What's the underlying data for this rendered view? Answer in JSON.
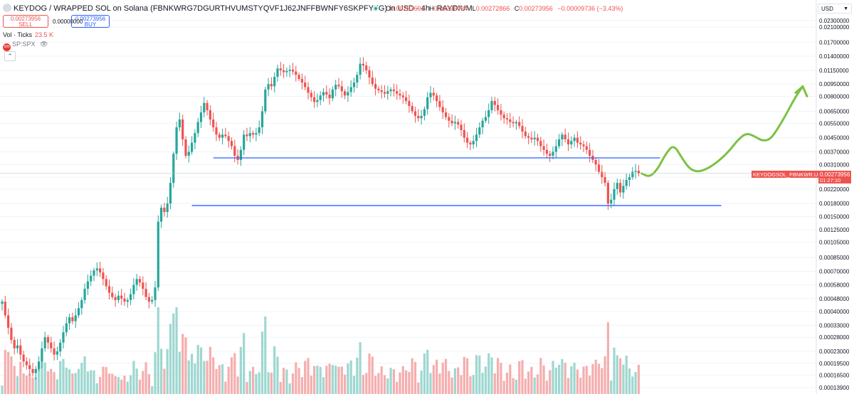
{
  "header": {
    "title": "KEYDOG / WRAPPED SOL on Solana (FBNKWRG7DGURTHVUMSTYQVF1J62JNFFBWNFY6SKPFYFG) in USD · 4h · RAYDIUM",
    "ohlc": {
      "o_label": "O",
      "o": "0.00283691",
      "h_label": "H",
      "h": "0.00296734",
      "l_label": "L",
      "l": "0.00272866",
      "c_label": "C",
      "c": "0.00273956",
      "change": "−0.00009736 (−3.43%)"
    }
  },
  "trade": {
    "sell_price": "0.00273956",
    "sell_label": "SELL",
    "spread": "0.00000000",
    "buy_price": "0.00273956",
    "buy_label": "BUY"
  },
  "volume_legend": {
    "label": "Vol · Ticks",
    "value": "23.5 K"
  },
  "overlay": {
    "symbol": "SP:SPX",
    "badge": "500"
  },
  "currency_selector": {
    "value": "USD"
  },
  "price_tag": {
    "symbol": "KEYDOGSOL_FBNKWR.USD",
    "price": "0.00273956",
    "countdown": "01:27:10"
  },
  "colors": {
    "up": "#26a69a",
    "down": "#ef5350",
    "vol_up": "#9ed7d0",
    "vol_down": "#f5aeae",
    "support_line": "#2962ff",
    "projection": "#7cc243",
    "price_tag": "#ef5350"
  },
  "chart_data": {
    "type": "candlestick",
    "interval": "4h",
    "y_scale": "log",
    "y_ticks": [
      "0.02300000",
      "0.02100000",
      "0.01700000",
      "0.01400000",
      "0.01150000",
      "0.00950000",
      "0.00800000",
      "0.00650000",
      "0.00550000",
      "0.00450000",
      "0.00370000",
      "0.00310000",
      "0.00260000",
      "0.00220000",
      "0.00180000",
      "0.00150000",
      "0.00125000",
      "0.00105000",
      "0.00085000",
      "0.00070000",
      "0.00058000",
      "0.00048000",
      "0.00040000",
      "0.00033000",
      "0.00028000",
      "0.00023000",
      "0.00019500",
      "0.00016500",
      "0.00013900"
    ],
    "closes": [
      0.00046,
      0.00038,
      0.00032,
      0.00027,
      0.00024,
      0.00025,
      0.00022,
      0.0002,
      0.00019,
      0.00018,
      0.00017,
      0.00018,
      0.0002,
      0.00024,
      0.00028,
      0.00026,
      0.00024,
      0.00022,
      0.00023,
      0.00026,
      0.0003,
      0.00034,
      0.00037,
      0.00035,
      0.00038,
      0.00042,
      0.00047,
      0.00055,
      0.00061,
      0.00066,
      0.00071,
      0.00073,
      0.00069,
      0.00063,
      0.00057,
      0.00052,
      0.00049,
      0.00047,
      0.0005,
      0.00048,
      0.00046,
      0.00047,
      0.00051,
      0.00058,
      0.00063,
      0.0006,
      0.00055,
      0.00049,
      0.00046,
      0.00047,
      0.00056,
      0.0014,
      0.0017,
      0.0016,
      0.0018,
      0.0024,
      0.0036,
      0.0052,
      0.0058,
      0.0044,
      0.0035,
      0.0037,
      0.0042,
      0.0048,
      0.0056,
      0.0064,
      0.0073,
      0.0066,
      0.0058,
      0.0052,
      0.0047,
      0.0045,
      0.0047,
      0.0046,
      0.0043,
      0.004,
      0.0035,
      0.0033,
      0.0038,
      0.0047,
      0.0046,
      0.0048,
      0.0047,
      0.0048,
      0.0052,
      0.0065,
      0.0088,
      0.0095,
      0.0092,
      0.0105,
      0.0118,
      0.0115,
      0.0112,
      0.0114,
      0.0116,
      0.0113,
      0.0108,
      0.0102,
      0.0097,
      0.0091,
      0.0084,
      0.0079,
      0.0074,
      0.0076,
      0.0081,
      0.0085,
      0.0082,
      0.0078,
      0.0088,
      0.0094,
      0.0092,
      0.0086,
      0.0081,
      0.0085,
      0.0091,
      0.0097,
      0.0108,
      0.0126,
      0.0123,
      0.0115,
      0.0104,
      0.0095,
      0.0089,
      0.0087,
      0.0085,
      0.0083,
      0.0086,
      0.0088,
      0.0086,
      0.0083,
      0.0081,
      0.0079,
      0.0075,
      0.007,
      0.0065,
      0.0061,
      0.0059,
      0.0061,
      0.0067,
      0.0079,
      0.0084,
      0.0081,
      0.0075,
      0.0069,
      0.0064,
      0.006,
      0.0057,
      0.0055,
      0.0056,
      0.0054,
      0.005,
      0.0045,
      0.0042,
      0.0041,
      0.0043,
      0.0047,
      0.0052,
      0.0057,
      0.006,
      0.0066,
      0.0075,
      0.0071,
      0.0066,
      0.0062,
      0.0059,
      0.0058,
      0.0056,
      0.0055,
      0.0056,
      0.0053,
      0.0049,
      0.0046,
      0.0045,
      0.0044,
      0.0045,
      0.0043,
      0.004,
      0.0038,
      0.0036,
      0.0035,
      0.0037,
      0.004,
      0.0044,
      0.0047,
      0.0044,
      0.0041,
      0.0043,
      0.0045,
      0.0042,
      0.0041,
      0.004,
      0.0038,
      0.0035,
      0.0033,
      0.0031,
      0.0028,
      0.0026,
      0.0024,
      0.0018,
      0.0019,
      0.0022,
      0.0024,
      0.0021,
      0.0023,
      0.0025,
      0.0026,
      0.0028,
      0.00284,
      0.00274
    ],
    "support_lines": [
      {
        "price": 0.0034,
        "from_index": 69,
        "to_index": 215
      },
      {
        "price": 0.00175,
        "from_index": 62,
        "to_index": 235
      }
    ],
    "projection_path": [
      0.00274,
      0.0026,
      0.0029,
      0.0036,
      0.0041,
      0.0034,
      0.0029,
      0.0028,
      0.0029,
      0.0031,
      0.0034,
      0.0038,
      0.0044,
      0.0048,
      0.0046,
      0.0043,
      0.0044,
      0.0052,
      0.0063,
      0.0078,
      0.0092
    ]
  }
}
